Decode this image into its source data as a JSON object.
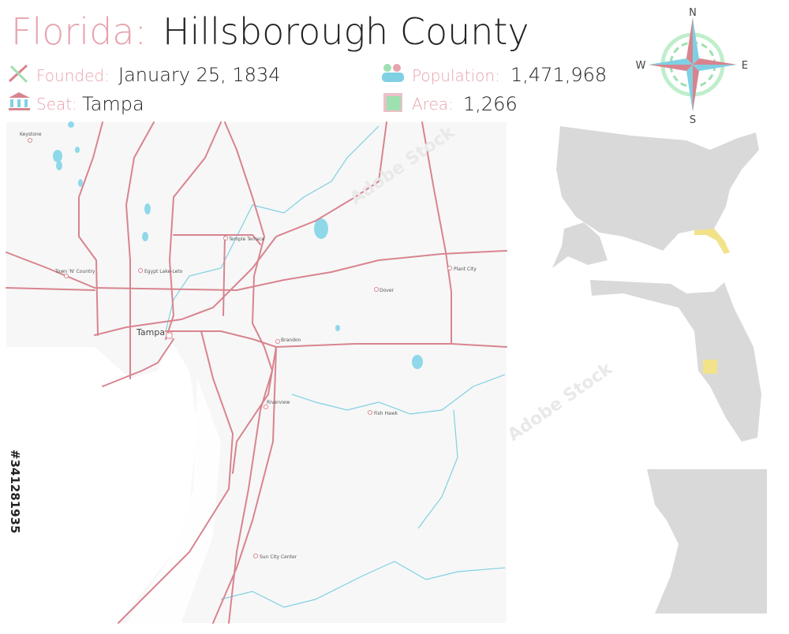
{
  "header": {
    "state": "Florida:",
    "county": "Hillsborough County",
    "facts": [
      {
        "label": "Founded:",
        "value": "January 25, 1834"
      },
      {
        "label": "Seat:",
        "value": "Tampa"
      },
      {
        "label": "Population:",
        "value": "1,471,968"
      },
      {
        "label": "Area:",
        "value": "1,266"
      }
    ]
  },
  "compass": {
    "north": "N",
    "east": "E",
    "south": "S",
    "west": "W"
  },
  "places": [
    "Keystone",
    "Town 'N' Country",
    "Egypt Lake-Leto",
    "Temple Terrace",
    "Tampa",
    "Plant City",
    "Dover",
    "Brandon",
    "Riverview",
    "Fish Hawk",
    "Sun City Center"
  ],
  "watermark": {
    "id": "#341281935",
    "brand": "Adobe Stock"
  }
}
